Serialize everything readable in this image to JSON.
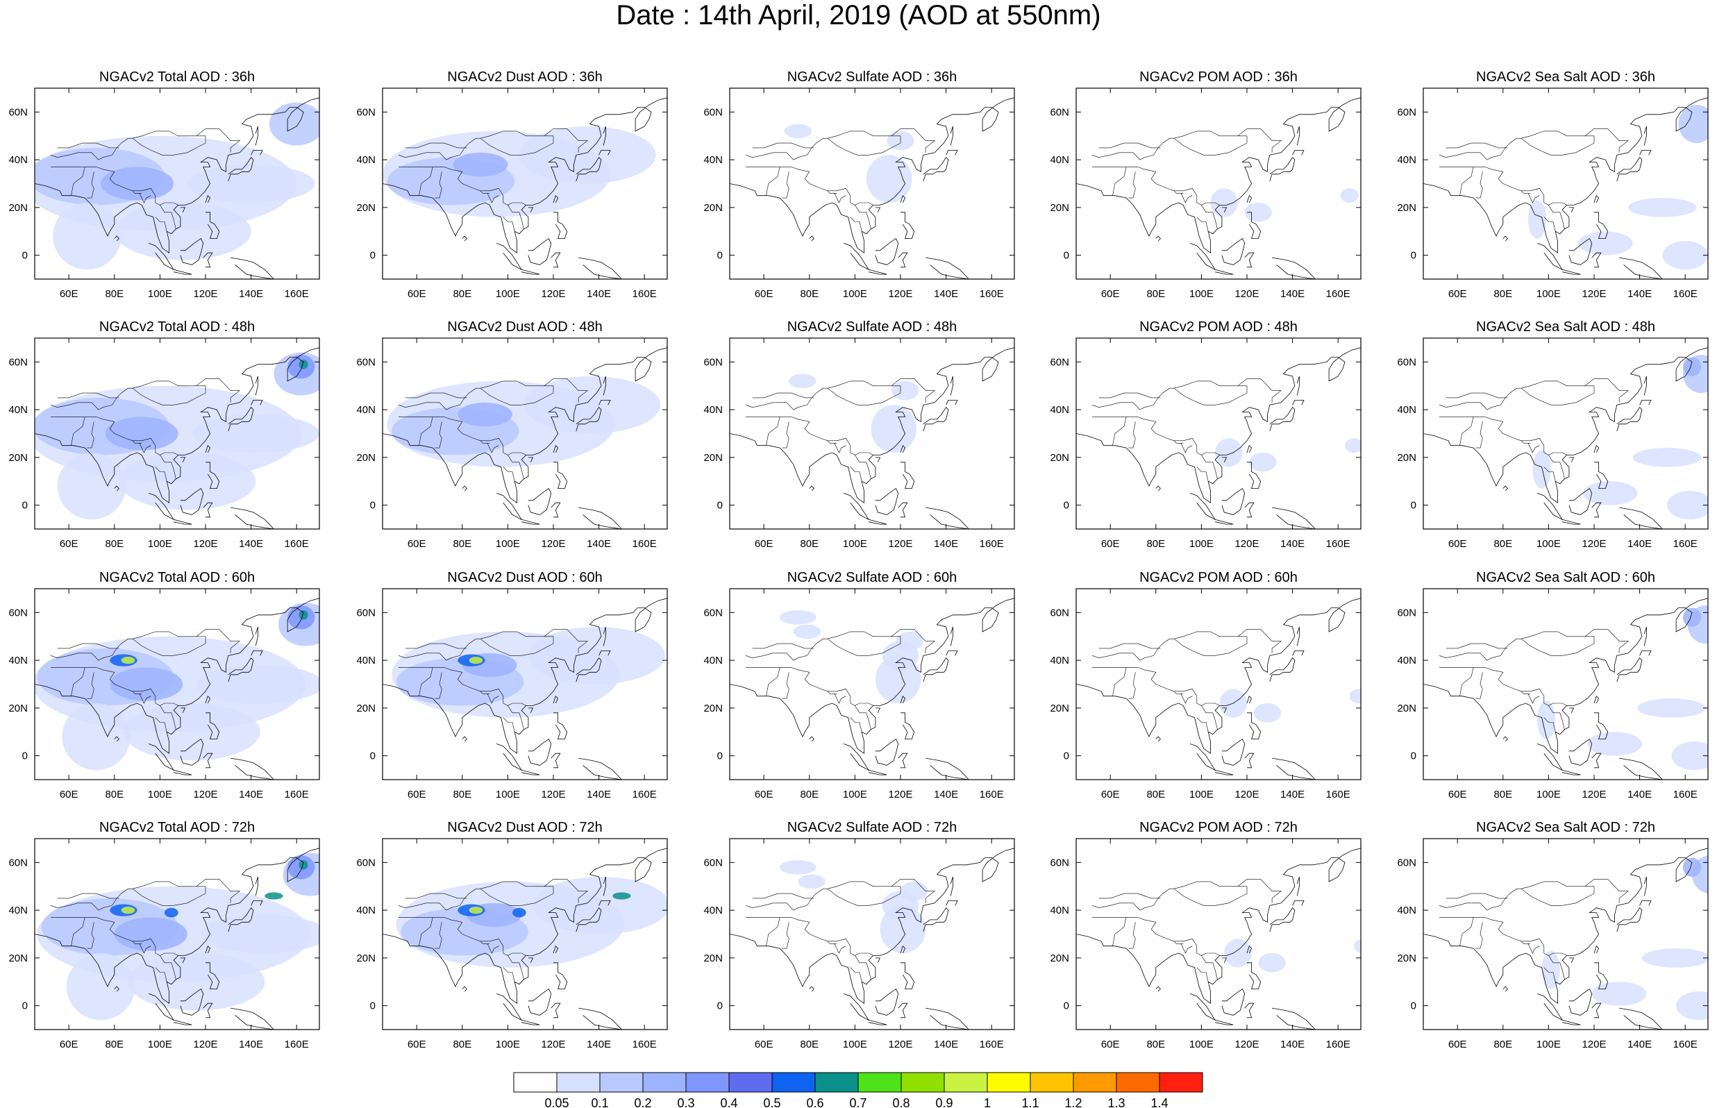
{
  "title": "Date : 14th April, 2019 (AOD at 550nm)",
  "panels": [
    {
      "title": "NGACv2 Total AOD : 36h",
      "species": "total",
      "hour": 36
    },
    {
      "title": "NGACv2 Dust AOD : 36h",
      "species": "dust",
      "hour": 36
    },
    {
      "title": "NGACv2 Sulfate AOD : 36h",
      "species": "sulfate",
      "hour": 36
    },
    {
      "title": "NGACv2 POM AOD : 36h",
      "species": "pom",
      "hour": 36
    },
    {
      "title": "NGACv2 Sea Salt AOD : 36h",
      "species": "seasalt",
      "hour": 36
    },
    {
      "title": "NGACv2 Total AOD : 48h",
      "species": "total",
      "hour": 48
    },
    {
      "title": "NGACv2 Dust AOD : 48h",
      "species": "dust",
      "hour": 48
    },
    {
      "title": "NGACv2 Sulfate AOD : 48h",
      "species": "sulfate",
      "hour": 48
    },
    {
      "title": "NGACv2 POM AOD : 48h",
      "species": "pom",
      "hour": 48
    },
    {
      "title": "NGACv2 Sea Salt AOD : 48h",
      "species": "seasalt",
      "hour": 48
    },
    {
      "title": "NGACv2 Total AOD : 60h",
      "species": "total",
      "hour": 60
    },
    {
      "title": "NGACv2 Dust AOD : 60h",
      "species": "dust",
      "hour": 60
    },
    {
      "title": "NGACv2 Sulfate AOD : 60h",
      "species": "sulfate",
      "hour": 60
    },
    {
      "title": "NGACv2 POM AOD : 60h",
      "species": "pom",
      "hour": 60
    },
    {
      "title": "NGACv2 Sea Salt AOD : 60h",
      "species": "seasalt",
      "hour": 60
    },
    {
      "title": "NGACv2 Total AOD : 72h",
      "species": "total",
      "hour": 72
    },
    {
      "title": "NGACv2 Dust AOD : 72h",
      "species": "dust",
      "hour": 72
    },
    {
      "title": "NGACv2 Sulfate AOD : 72h",
      "species": "sulfate",
      "hour": 72
    },
    {
      "title": "NGACv2 POM AOD : 72h",
      "species": "pom",
      "hour": 72
    },
    {
      "title": "NGACv2 Sea Salt  AOD : 72h",
      "species": "seasalt",
      "hour": 72
    }
  ],
  "axes": {
    "lon_range": [
      45,
      170
    ],
    "lat_range": [
      -10,
      70
    ],
    "lon_ticks": [
      60,
      80,
      100,
      120,
      140,
      160
    ],
    "lon_labels": [
      "60E",
      "80E",
      "100E",
      "120E",
      "140E",
      "160E"
    ],
    "lat_ticks": [
      60,
      40,
      20,
      0
    ],
    "lat_labels": [
      "60N",
      "40N",
      "20N",
      "0"
    ]
  },
  "colorbar": {
    "labels": [
      "0.05",
      "0.1",
      "0.2",
      "0.3",
      "0.4",
      "0.5",
      "0.6",
      "0.7",
      "0.8",
      "0.9",
      "1",
      "1.1",
      "1.2",
      "1.3",
      "1.4"
    ],
    "colors": [
      "#ffffff",
      "#d7e1ff",
      "#b9c9ff",
      "#9db3ff",
      "#7f95ff",
      "#5f6cf0",
      "#0e63f0",
      "#0a8f8a",
      "#4ee21a",
      "#8fe000",
      "#c9f241",
      "#fffc00",
      "#ffc400",
      "#ff9a00",
      "#ff6a00",
      "#ff2010"
    ]
  }
}
